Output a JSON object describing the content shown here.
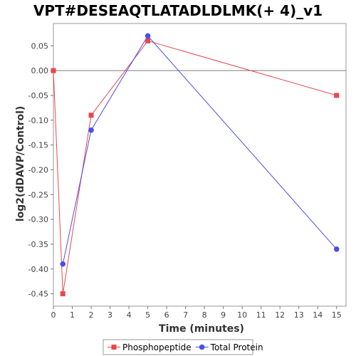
{
  "chart_data": {
    "type": "line",
    "title": "VPT#DESEAQTLATADLDLMK(+ 4)_v1",
    "xlabel": "Time (minutes)",
    "ylabel": "log2(dDAVP/Control)",
    "xlim": [
      0,
      15.5
    ],
    "ylim": [
      -0.475,
      0.095
    ],
    "xticks": [
      0,
      1,
      2,
      3,
      4,
      5,
      6,
      7,
      8,
      9,
      10,
      11,
      12,
      13,
      14,
      15
    ],
    "xtick_labels": [
      "0",
      "1",
      "2",
      "3",
      "4",
      "5",
      "6",
      "7",
      "8",
      "9",
      "10",
      "11",
      "12",
      "13",
      "14",
      "15"
    ],
    "yticks": [
      0.05,
      0.0,
      -0.05,
      -0.1,
      -0.15,
      -0.2,
      -0.25,
      -0.3,
      -0.35,
      -0.4,
      -0.45
    ],
    "ytick_labels": [
      "0.05",
      "0.00",
      "-0.05",
      "-0.10",
      "-0.15",
      "-0.20",
      "-0.25",
      "-0.30",
      "-0.35",
      "-0.40",
      "-0.45"
    ],
    "grid": false,
    "zero_line": true,
    "legend_position": "bottom",
    "series": [
      {
        "name": "Phosphopeptide",
        "color": "#e8474d",
        "marker": "square",
        "x": [
          0,
          0.5,
          2,
          5,
          15
        ],
        "y": [
          0.0,
          -0.45,
          -0.09,
          0.06,
          -0.05
        ]
      },
      {
        "name": "Total Protein",
        "color": "#4d4de8",
        "marker": "circle",
        "x": [
          0.5,
          2,
          5,
          15
        ],
        "y": [
          -0.39,
          -0.12,
          0.07,
          -0.36
        ]
      }
    ]
  }
}
